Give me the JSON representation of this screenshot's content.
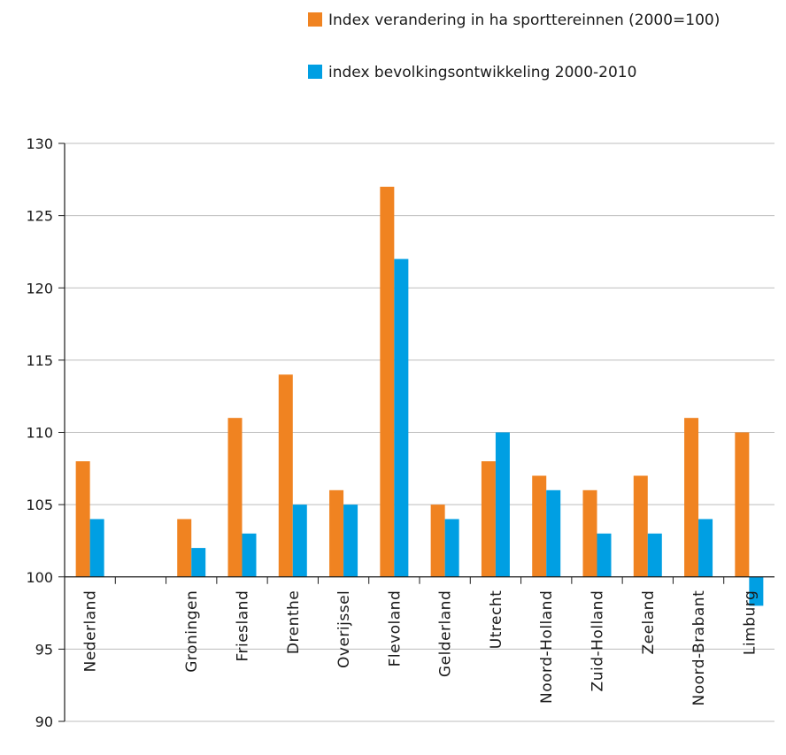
{
  "chart_data": {
    "type": "bar",
    "title": "",
    "xlabel": "",
    "ylabel": "",
    "ylim": [
      90,
      130
    ],
    "yticks": [
      90,
      95,
      100,
      105,
      110,
      115,
      120,
      125,
      130
    ],
    "baseline": 100,
    "grid": true,
    "legend_position": "top-right",
    "categories": [
      "Nederland",
      "",
      "Groningen",
      "Friesland",
      "Drenthe",
      "Overijssel",
      "Flevoland",
      "Gelderland",
      "Utrecht",
      "Noord-Holland",
      "Zuid-Holland",
      "Zeeland",
      "Noord-Brabant",
      "Limburg"
    ],
    "series": [
      {
        "name": "Index verandering in ha sporttereinnen (2000=100)",
        "color": "#f08321",
        "values": [
          108,
          null,
          104,
          111,
          114,
          106,
          127,
          105,
          108,
          107,
          106,
          107,
          111,
          110
        ]
      },
      {
        "name": "index bevolkingsontwikkeling 2000-2010",
        "color": "#009fe3",
        "values": [
          104,
          null,
          102,
          103,
          105,
          105,
          122,
          104,
          110,
          106,
          103,
          103,
          104,
          98
        ]
      }
    ]
  }
}
